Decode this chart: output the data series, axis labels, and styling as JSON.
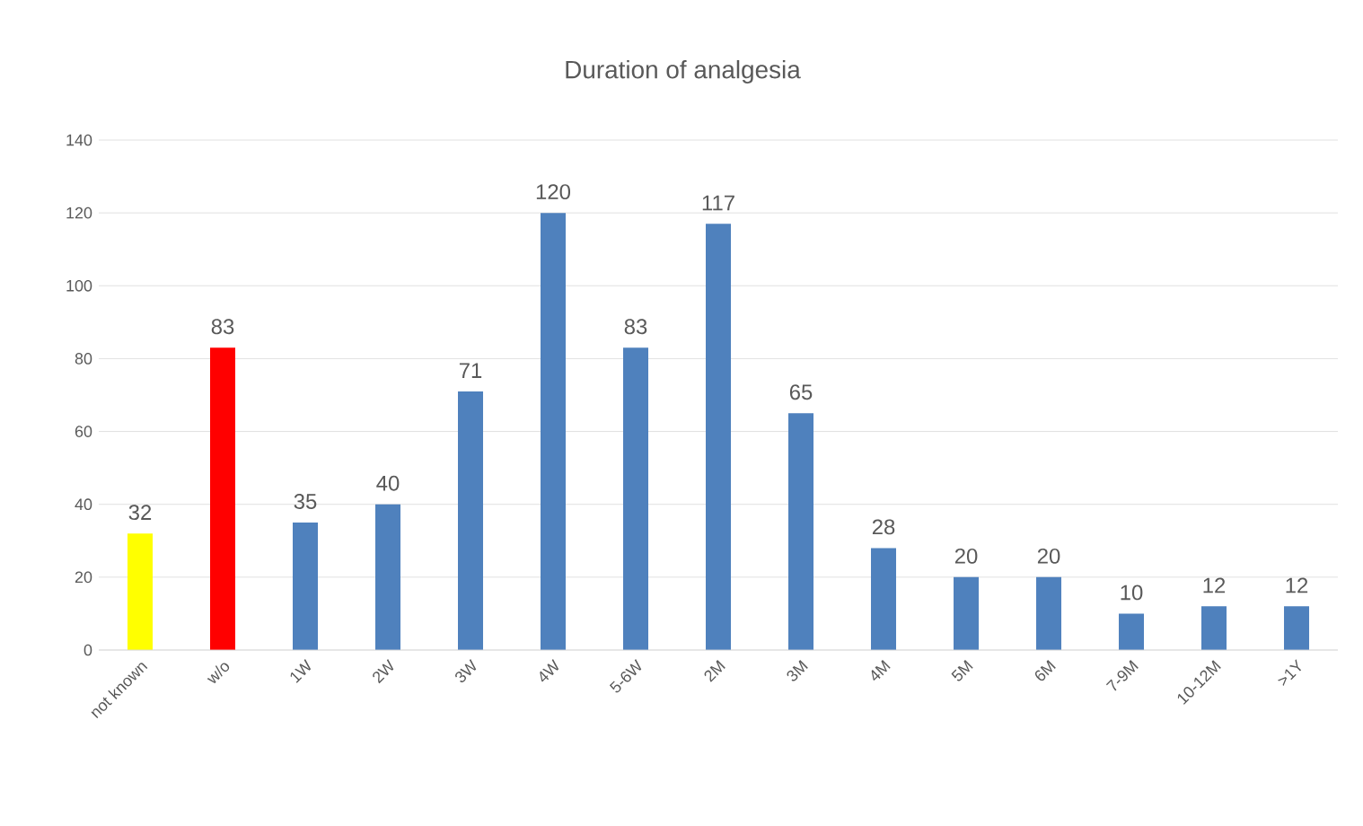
{
  "chart_data": {
    "type": "bar",
    "title": "Duration of analgesia",
    "categories": [
      "not known",
      "w/o",
      "1W",
      "2W",
      "3W",
      "4W",
      "5-6W",
      "2M",
      "3M",
      "4M",
      "5M",
      "6M",
      "7-9M",
      "10-12M",
      ">1Y"
    ],
    "values": [
      32,
      83,
      35,
      40,
      71,
      120,
      83,
      117,
      65,
      28,
      20,
      20,
      10,
      12,
      12
    ],
    "colors": [
      "#ffff00",
      "#ff0000",
      "#4f81bd",
      "#4f81bd",
      "#4f81bd",
      "#4f81bd",
      "#4f81bd",
      "#4f81bd",
      "#4f81bd",
      "#4f81bd",
      "#4f81bd",
      "#4f81bd",
      "#4f81bd",
      "#4f81bd",
      "#4f81bd"
    ],
    "ylim": [
      0,
      140
    ],
    "yticks": [
      0,
      20,
      40,
      60,
      80,
      100,
      120,
      140
    ],
    "grid": "y",
    "data_labels": true
  }
}
